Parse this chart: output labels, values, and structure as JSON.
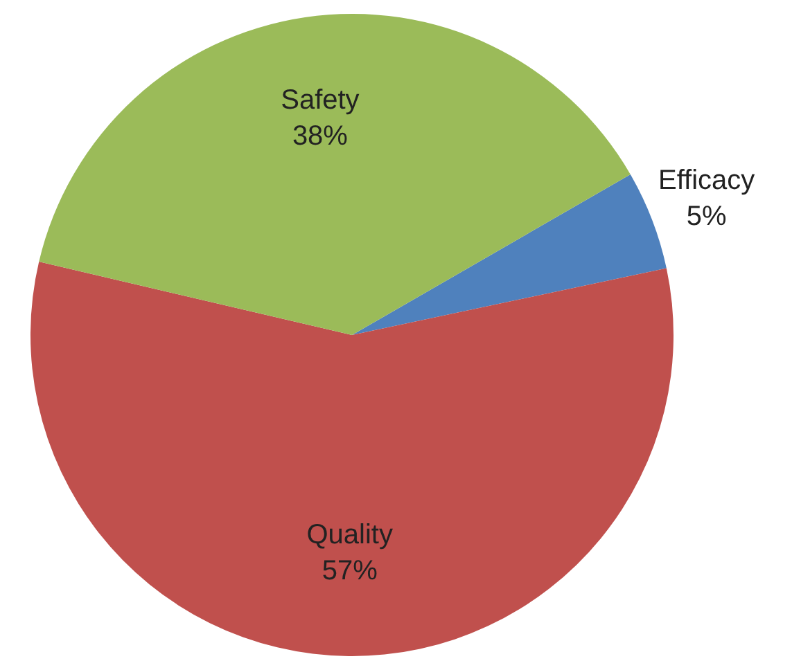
{
  "chart_data": {
    "type": "pie",
    "categories": [
      "Efficacy",
      "Quality",
      "Safety"
    ],
    "values": [
      5,
      57,
      38
    ],
    "colors": [
      "#4f81bd",
      "#c0504d",
      "#9bbb59"
    ],
    "value_labels": [
      "5%",
      "57%",
      "38%"
    ],
    "legend": false
  }
}
